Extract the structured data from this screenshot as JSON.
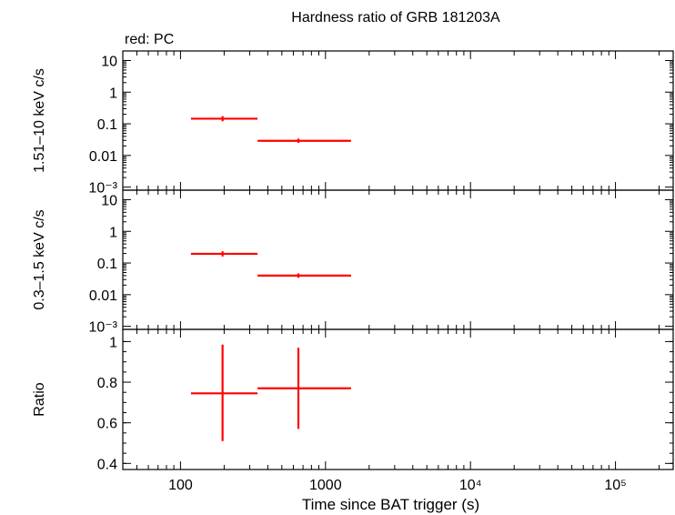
{
  "title": "Hardness ratio of GRB 181203A",
  "subtitle": "red: PC",
  "colors": {
    "series": "#ff0000",
    "axis": "#000000"
  },
  "chart_data": [
    {
      "type": "scatter",
      "panel": "hard",
      "ylabel": "1.51–10 keV c/s",
      "yscale": "log",
      "ylim": [
        0.0008,
        20
      ],
      "yticks": [
        {
          "value": 10,
          "label": "10"
        },
        {
          "value": 1,
          "label": "1"
        },
        {
          "value": 0.1,
          "label": "0.1"
        },
        {
          "value": 0.01,
          "label": "0.01"
        },
        {
          "value": 0.001,
          "label": "10⁻³"
        }
      ],
      "points": [
        {
          "x": 195,
          "xlo": 118,
          "xhi": 340,
          "y": 0.145,
          "ylo": 0.12,
          "yhi": 0.175
        },
        {
          "x": 650,
          "xlo": 340,
          "xhi": 1500,
          "y": 0.029,
          "ylo": 0.025,
          "yhi": 0.034
        }
      ]
    },
    {
      "type": "scatter",
      "panel": "soft",
      "ylabel": "0.3–1.5 keV c/s",
      "yscale": "log",
      "ylim": [
        0.0008,
        20
      ],
      "yticks": [
        {
          "value": 10,
          "label": "10"
        },
        {
          "value": 1,
          "label": "1"
        },
        {
          "value": 0.1,
          "label": "0.1"
        },
        {
          "value": 0.01,
          "label": "0.01"
        },
        {
          "value": 0.001,
          "label": "10⁻³"
        }
      ],
      "points": [
        {
          "x": 195,
          "xlo": 118,
          "xhi": 340,
          "y": 0.195,
          "ylo": 0.16,
          "yhi": 0.235
        },
        {
          "x": 650,
          "xlo": 340,
          "xhi": 1500,
          "y": 0.04,
          "ylo": 0.034,
          "yhi": 0.047
        }
      ]
    },
    {
      "type": "scatter",
      "panel": "ratio",
      "ylabel": "Ratio",
      "yscale": "linear",
      "ylim": [
        0.37,
        1.06
      ],
      "yticks": [
        {
          "value": 1,
          "label": "1"
        },
        {
          "value": 0.8,
          "label": "0.8"
        },
        {
          "value": 0.6,
          "label": "0.6"
        },
        {
          "value": 0.4,
          "label": "0.4"
        }
      ],
      "xlabel": "Time since BAT trigger (s)",
      "points": [
        {
          "x": 195,
          "xlo": 118,
          "xhi": 340,
          "y": 0.745,
          "ylo": 0.51,
          "yhi": 0.985
        },
        {
          "x": 650,
          "xlo": 340,
          "xhi": 1500,
          "y": 0.77,
          "ylo": 0.57,
          "yhi": 0.97
        }
      ]
    }
  ],
  "xaxis": {
    "scale": "log",
    "xlim": [
      40,
      250000
    ],
    "ticks": [
      {
        "value": 100,
        "label": "100"
      },
      {
        "value": 1000,
        "label": "1000"
      },
      {
        "value": 10000,
        "label": "10⁴"
      },
      {
        "value": 100000,
        "label": "10⁵"
      }
    ]
  }
}
